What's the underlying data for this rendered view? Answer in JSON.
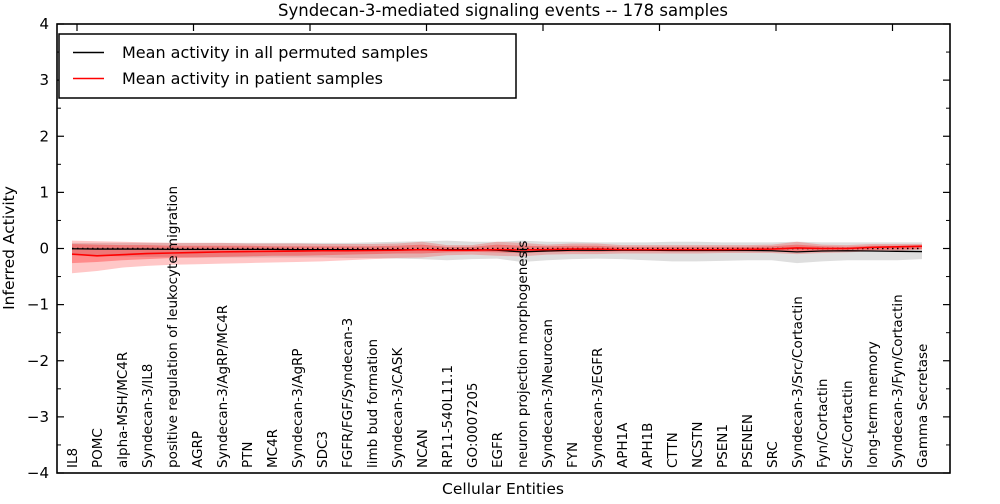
{
  "chart_data": {
    "type": "line",
    "title": "Syndecan-3-mediated signaling events -- 178 samples",
    "xlabel": "Cellular Entities",
    "ylabel": "Inferred Activity",
    "ylim": [
      -4,
      4
    ],
    "ytick_labels": [
      "4",
      "3",
      "2",
      "1",
      "0",
      "−1",
      "−2",
      "−3",
      "−4"
    ],
    "ytick_values": [
      4,
      3,
      2,
      1,
      0,
      -1,
      -2,
      -3,
      -4
    ],
    "grid": false,
    "legend_position": "upper left",
    "categories": [
      "IL8",
      "POMC",
      "alpha-MSH/MC4R",
      "Syndecan-3/IL8",
      "positive regulation of leukocyte migration",
      "AGRP",
      "Syndecan-3/AgRP/MC4R",
      "PTN",
      "MC4R",
      "Syndecan-3/AgRP",
      "SDC3",
      "FGFR/FGF/Syndecan-3",
      "limb bud formation",
      "Syndecan-3/CASK",
      "NCAN",
      "RP11-540L11.1",
      "GO:0007205",
      "EGFR",
      "neuron projection morphogenesis",
      "Syndecan-3/Neurocan",
      "FYN",
      "Syndecan-3/EGFR",
      "APH1A",
      "APH1B",
      "CTTN",
      "NCSTN",
      "PSEN1",
      "PSENEN",
      "SRC",
      "Syndecan-3/Src/Cortactin",
      "Fyn/Cortactin",
      "Src/Cortactin",
      "long-term memory",
      "Syndecan-3/Fyn/Cortactin",
      "Gamma Secretase"
    ],
    "series": [
      {
        "name": "Mean activity in all permuted samples",
        "color": "#000000",
        "values": [
          -0.005,
          -0.01,
          -0.01,
          -0.01,
          -0.015,
          -0.015,
          -0.015,
          -0.015,
          -0.015,
          -0.02,
          -0.02,
          -0.02,
          -0.02,
          -0.02,
          -0.025,
          -0.02,
          -0.02,
          -0.03,
          -0.06,
          -0.045,
          -0.03,
          -0.03,
          -0.03,
          -0.03,
          -0.035,
          -0.035,
          -0.035,
          -0.035,
          -0.04,
          -0.06,
          -0.045,
          -0.04,
          -0.045,
          -0.05,
          -0.055
        ]
      },
      {
        "name": "Mean activity in patient samples",
        "color": "#ff0000",
        "values": [
          -0.1,
          -0.13,
          -0.11,
          -0.09,
          -0.08,
          -0.07,
          -0.06,
          -0.055,
          -0.05,
          -0.045,
          -0.04,
          -0.04,
          -0.035,
          -0.03,
          -0.02,
          -0.03,
          -0.03,
          -0.02,
          -0.025,
          -0.02,
          -0.01,
          -0.01,
          -0.02,
          -0.02,
          -0.02,
          -0.02,
          -0.02,
          -0.015,
          -0.01,
          0.01,
          0.0,
          0.0,
          0.02,
          0.03,
          0.04
        ]
      }
    ],
    "bands": [
      {
        "name": "permuted-activity-range",
        "color": "#888888",
        "opacity": 0.28,
        "upper": [
          0.1,
          0.1,
          0.1,
          0.1,
          0.1,
          0.1,
          0.1,
          0.1,
          0.1,
          0.1,
          0.1,
          0.1,
          0.11,
          0.12,
          0.13,
          0.14,
          0.12,
          0.12,
          0.14,
          0.12,
          0.12,
          0.11,
          0.11,
          0.11,
          0.12,
          0.12,
          0.11,
          0.11,
          0.11,
          0.12,
          0.11,
          0.11,
          0.11,
          0.11,
          0.11
        ],
        "lower": [
          -0.12,
          -0.13,
          -0.14,
          -0.15,
          -0.15,
          -0.16,
          -0.16,
          -0.16,
          -0.16,
          -0.16,
          -0.16,
          -0.17,
          -0.17,
          -0.18,
          -0.19,
          -0.21,
          -0.19,
          -0.18,
          -0.24,
          -0.21,
          -0.19,
          -0.18,
          -0.19,
          -0.21,
          -0.23,
          -0.23,
          -0.22,
          -0.21,
          -0.21,
          -0.26,
          -0.23,
          -0.21,
          -0.21,
          -0.21,
          -0.19
        ]
      },
      {
        "name": "patient-activity-outer-range",
        "color": "#ff0000",
        "opacity": 0.22,
        "upper": [
          0.14,
          0.13,
          0.12,
          0.11,
          0.1,
          0.1,
          0.1,
          0.09,
          0.09,
          0.09,
          0.08,
          0.08,
          0.08,
          0.09,
          0.12,
          0.06,
          0.06,
          0.12,
          0.1,
          0.07,
          0.09,
          0.09,
          0.06,
          0.06,
          0.06,
          0.06,
          0.06,
          0.06,
          0.07,
          0.12,
          0.07,
          0.06,
          0.08,
          0.08,
          0.08
        ],
        "lower": [
          -0.44,
          -0.4,
          -0.34,
          -0.31,
          -0.29,
          -0.28,
          -0.27,
          -0.26,
          -0.25,
          -0.24,
          -0.23,
          -0.21,
          -0.19,
          -0.17,
          -0.16,
          -0.12,
          -0.11,
          -0.13,
          -0.14,
          -0.11,
          -0.1,
          -0.1,
          -0.09,
          -0.09,
          -0.09,
          -0.09,
          -0.08,
          -0.08,
          -0.08,
          -0.1,
          -0.08,
          -0.07,
          -0.05,
          -0.04,
          -0.02
        ]
      },
      {
        "name": "patient-activity-inner-range",
        "color": "#ff0000",
        "opacity": 0.3,
        "upper": [
          0.08,
          0.07,
          0.06,
          0.06,
          0.05,
          0.05,
          0.05,
          0.05,
          0.04,
          0.04,
          0.04,
          0.04,
          0.04,
          0.05,
          0.07,
          0.03,
          0.03,
          0.07,
          0.05,
          0.04,
          0.05,
          0.05,
          0.03,
          0.03,
          0.03,
          0.03,
          0.03,
          0.03,
          0.04,
          0.07,
          0.04,
          0.03,
          0.05,
          0.05,
          0.06
        ],
        "lower": [
          -0.26,
          -0.24,
          -0.21,
          -0.19,
          -0.17,
          -0.16,
          -0.15,
          -0.14,
          -0.13,
          -0.13,
          -0.12,
          -0.11,
          -0.1,
          -0.09,
          -0.09,
          -0.07,
          -0.06,
          -0.07,
          -0.08,
          -0.06,
          -0.06,
          -0.06,
          -0.05,
          -0.05,
          -0.05,
          -0.05,
          -0.05,
          -0.04,
          -0.04,
          -0.06,
          -0.05,
          -0.04,
          -0.03,
          -0.02,
          -0.01
        ]
      }
    ],
    "zero_line": {
      "value": 0,
      "style": "dotted",
      "color": "#000000"
    }
  }
}
